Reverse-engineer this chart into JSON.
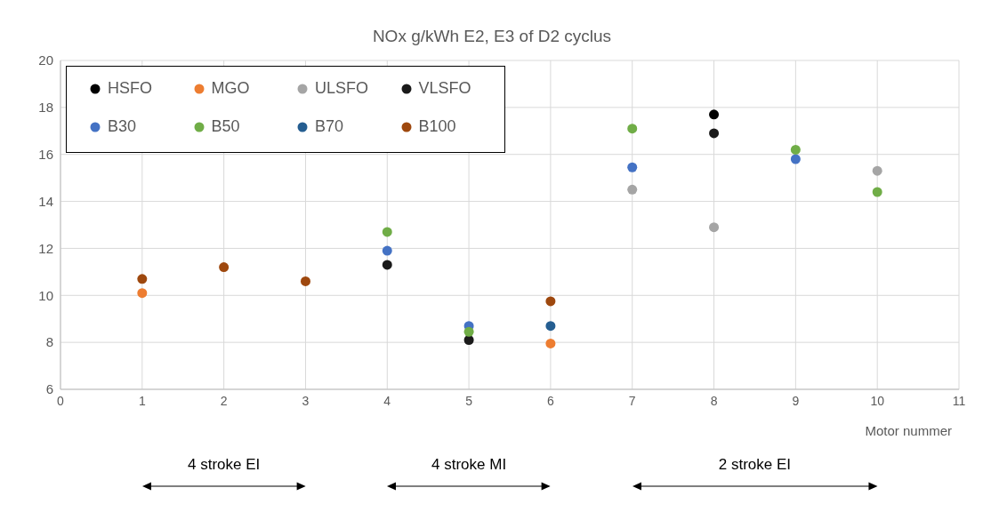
{
  "chart_data": {
    "type": "scatter",
    "title": "NOx  g/kWh   E2, E3 of D2 cyclus",
    "xlabel": "Motor nummer",
    "x": [
      1,
      2,
      3,
      4,
      5,
      6,
      7,
      8,
      9,
      10
    ],
    "series": [
      {
        "name": "HSFO",
        "color": "#000000",
        "values": [
          null,
          null,
          null,
          null,
          null,
          null,
          null,
          17.7,
          null,
          null
        ]
      },
      {
        "name": "MGO",
        "color": "#ed7d31",
        "values": [
          10.1,
          null,
          null,
          null,
          null,
          7.95,
          null,
          null,
          null,
          null
        ]
      },
      {
        "name": "ULSFO",
        "color": "#a5a5a5",
        "values": [
          null,
          null,
          null,
          null,
          null,
          null,
          14.5,
          12.9,
          null,
          15.3
        ]
      },
      {
        "name": "VLSFO",
        "color": "#1a1a1a",
        "values": [
          null,
          null,
          null,
          11.3,
          8.1,
          null,
          null,
          16.9,
          null,
          null
        ]
      },
      {
        "name": "B30",
        "color": "#4472c4",
        "values": [
          null,
          null,
          null,
          11.9,
          8.7,
          null,
          15.45,
          null,
          15.8,
          null
        ]
      },
      {
        "name": "B50",
        "color": "#70ad47",
        "values": [
          null,
          null,
          null,
          12.7,
          8.45,
          null,
          17.1,
          null,
          16.2,
          14.4
        ]
      },
      {
        "name": "B70",
        "color": "#255e91",
        "values": [
          null,
          null,
          null,
          null,
          null,
          8.7,
          null,
          null,
          null,
          null
        ]
      },
      {
        "name": "B100",
        "color": "#9e480e",
        "values": [
          10.7,
          11.2,
          10.6,
          null,
          null,
          9.75,
          null,
          null,
          null,
          null
        ]
      }
    ],
    "xlim": [
      0,
      11
    ],
    "xticks": [
      0,
      1,
      2,
      3,
      4,
      5,
      6,
      7,
      8,
      9,
      10,
      11
    ],
    "ylim": [
      6,
      20
    ],
    "yticks": [
      6,
      8,
      10,
      12,
      14,
      16,
      18,
      20
    ],
    "grid": true,
    "legend": "top left",
    "marker": "circle",
    "annotations": [
      "4 stroke EI",
      "4 stroke MI",
      "2 stroke EI"
    ]
  }
}
